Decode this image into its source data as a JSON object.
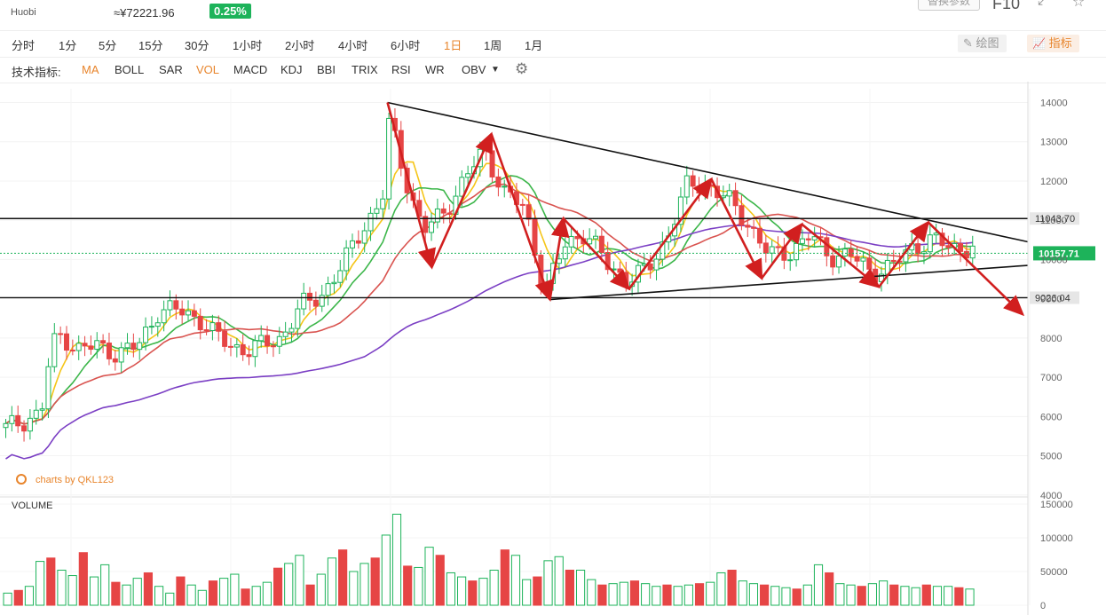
{
  "header": {
    "exchange": "Huobi",
    "cny_price": "≈¥72221.96",
    "change": "0.25%",
    "params_button": "replace-params",
    "f10": "F10"
  },
  "timeframes": [
    "分时",
    "1分",
    "5分",
    "15分",
    "30分",
    "1小时",
    "2小时",
    "4小时",
    "6小时",
    "1日",
    "1周",
    "1月"
  ],
  "active_timeframe": "1日",
  "tools": {
    "draw": "绘图",
    "indicator": "指标"
  },
  "indicators": {
    "label": "技术指标:",
    "items": [
      "MA",
      "BOLL",
      "SAR",
      "VOL",
      "MACD",
      "KDJ",
      "BBI",
      "TRIX",
      "RSI",
      "WR",
      "OBV"
    ],
    "active": [
      "MA",
      "VOL"
    ]
  },
  "watermark": "charts by QKL123",
  "volume_label": "VOLUME",
  "colors": {
    "up": "#1db35a",
    "down": "#e64545",
    "accent": "#e8852c",
    "ma5": "#f5c518",
    "ma10": "#3cb64a",
    "ma20": "#d9534f",
    "ma60": "#7b3fc4",
    "arrow": "#d11f1f"
  },
  "chart_data": {
    "type": "candlestick",
    "price_axis": {
      "ticks": [
        14000,
        13000,
        12000,
        11000,
        10000,
        9000,
        8000,
        7000,
        6000,
        5000,
        4000
      ],
      "range": [
        3950,
        14350
      ]
    },
    "volume_axis": {
      "ticks": [
        150000,
        100000,
        50000,
        0
      ],
      "range": [
        0,
        150000
      ]
    },
    "level_labels": [
      "11043.70",
      "10157.71",
      "9026.04"
    ],
    "horizontal_levels": [
      11043.7,
      9026.04
    ],
    "last_price": 10157.71,
    "trendlines": [
      {
        "from": [
          0.377,
          14000
        ],
        "to": [
          1.0,
          10450
        ]
      },
      {
        "from": [
          0.535,
          8980
        ],
        "to": [
          1.0,
          9850
        ]
      }
    ],
    "zigzag_points": [
      [
        0.377,
        14000
      ],
      [
        0.42,
        9800
      ],
      [
        0.478,
        13200
      ],
      [
        0.535,
        8980
      ],
      [
        0.548,
        11050
      ],
      [
        0.612,
        9250
      ],
      [
        0.692,
        12050
      ],
      [
        0.741,
        9520
      ],
      [
        0.78,
        10900
      ],
      [
        0.855,
        9300
      ],
      [
        0.903,
        10950
      ],
      [
        0.995,
        8600
      ]
    ],
    "candles_by_segment": {
      "description_none": "",
      "segments": [
        [
          0.0,
          5700
        ],
        [
          0.035,
          6100
        ],
        [
          0.045,
          7800
        ],
        [
          0.055,
          8100
        ],
        [
          0.07,
          7700
        ],
        [
          0.09,
          7800
        ],
        [
          0.11,
          7600
        ],
        [
          0.13,
          7800
        ],
        [
          0.15,
          8700
        ],
        [
          0.17,
          8700
        ],
        [
          0.19,
          8500
        ],
        [
          0.2,
          8200
        ],
        [
          0.22,
          7800
        ],
        [
          0.24,
          7700
        ],
        [
          0.27,
          8000
        ],
        [
          0.29,
          8800
        ],
        [
          0.31,
          9100
        ],
        [
          0.33,
          9800
        ],
        [
          0.35,
          10800
        ],
        [
          0.37,
          11500
        ],
        [
          0.377,
          13600
        ],
        [
          0.39,
          12300
        ],
        [
          0.41,
          10700
        ],
        [
          0.43,
          11200
        ],
        [
          0.45,
          12000
        ],
        [
          0.47,
          12800
        ],
        [
          0.49,
          11700
        ],
        [
          0.51,
          11300
        ],
        [
          0.53,
          9200
        ],
        [
          0.55,
          10400
        ],
        [
          0.57,
          10700
        ],
        [
          0.59,
          9900
        ],
        [
          0.61,
          9500
        ],
        [
          0.63,
          9700
        ],
        [
          0.65,
          10600
        ],
        [
          0.67,
          11900
        ],
        [
          0.69,
          11900
        ],
        [
          0.71,
          11500
        ],
        [
          0.73,
          10900
        ],
        [
          0.75,
          10100
        ],
        [
          0.77,
          10200
        ],
        [
          0.79,
          10600
        ],
        [
          0.81,
          10100
        ],
        [
          0.83,
          10100
        ],
        [
          0.85,
          9700
        ],
        [
          0.87,
          9800
        ],
        [
          0.89,
          10300
        ],
        [
          0.91,
          10500
        ],
        [
          0.93,
          10300
        ],
        [
          0.95,
          10300
        ]
      ]
    },
    "volumes": [
      18,
      22,
      28,
      65,
      70,
      52,
      44,
      78,
      42,
      60,
      34,
      30,
      40,
      48,
      28,
      18,
      42,
      30,
      22,
      36,
      40,
      46,
      24,
      28,
      34,
      55,
      62,
      74,
      30,
      46,
      70,
      82,
      50,
      62,
      70,
      104,
      135,
      58,
      56,
      86,
      74,
      48,
      42,
      36,
      40,
      52,
      82,
      74,
      38,
      42,
      66,
      72,
      52,
      52,
      38,
      30,
      32,
      34,
      36,
      32,
      28,
      30,
      28,
      30,
      32,
      34,
      48,
      52,
      36,
      32,
      30,
      28,
      26,
      24,
      30,
      60,
      48,
      32,
      30,
      28,
      32,
      36,
      30,
      28,
      26,
      30,
      28,
      28,
      26,
      24
    ]
  }
}
